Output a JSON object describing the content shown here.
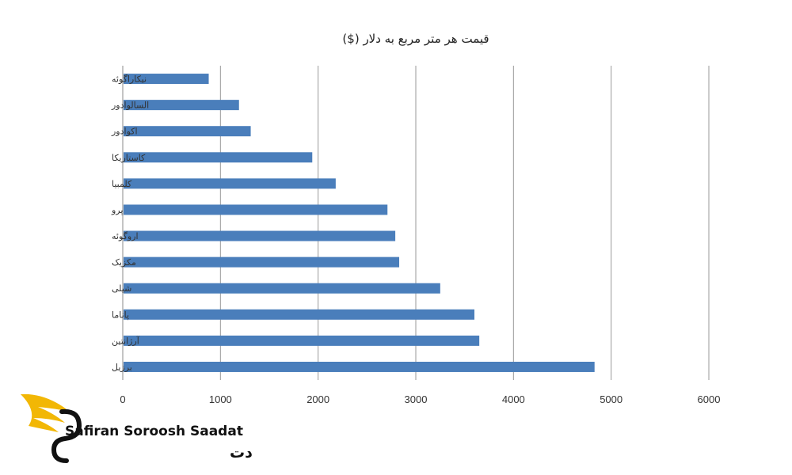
{
  "chart_data": {
    "type": "bar",
    "orientation": "horizontal",
    "title": "قیمت هر متر مربع به دلار ($)",
    "categories": [
      "نیکاراگوئه",
      "السالوادور",
      "اکوادور",
      "کاستاریکا",
      "کلمبیا",
      "پرو",
      "اروگوئه",
      "مکزیک",
      "شیلی",
      "پاناما",
      "آرژانتین",
      "برزیل"
    ],
    "values": [
      880,
      1190,
      1310,
      1940,
      2180,
      2710,
      2790,
      2830,
      3250,
      3600,
      3650,
      4830
    ],
    "xlim": [
      0,
      6000
    ],
    "xticks": [
      "0",
      "1000",
      "2000",
      "3000",
      "4000",
      "5000",
      "6000"
    ],
    "grid": true,
    "bar_color": "#4a7ebb"
  },
  "watermark": {
    "brand_en": "Safiran Soroosh Saadat",
    "brand_fa": "سفیران سروش سعادت",
    "accent_color": "#f2b705"
  }
}
